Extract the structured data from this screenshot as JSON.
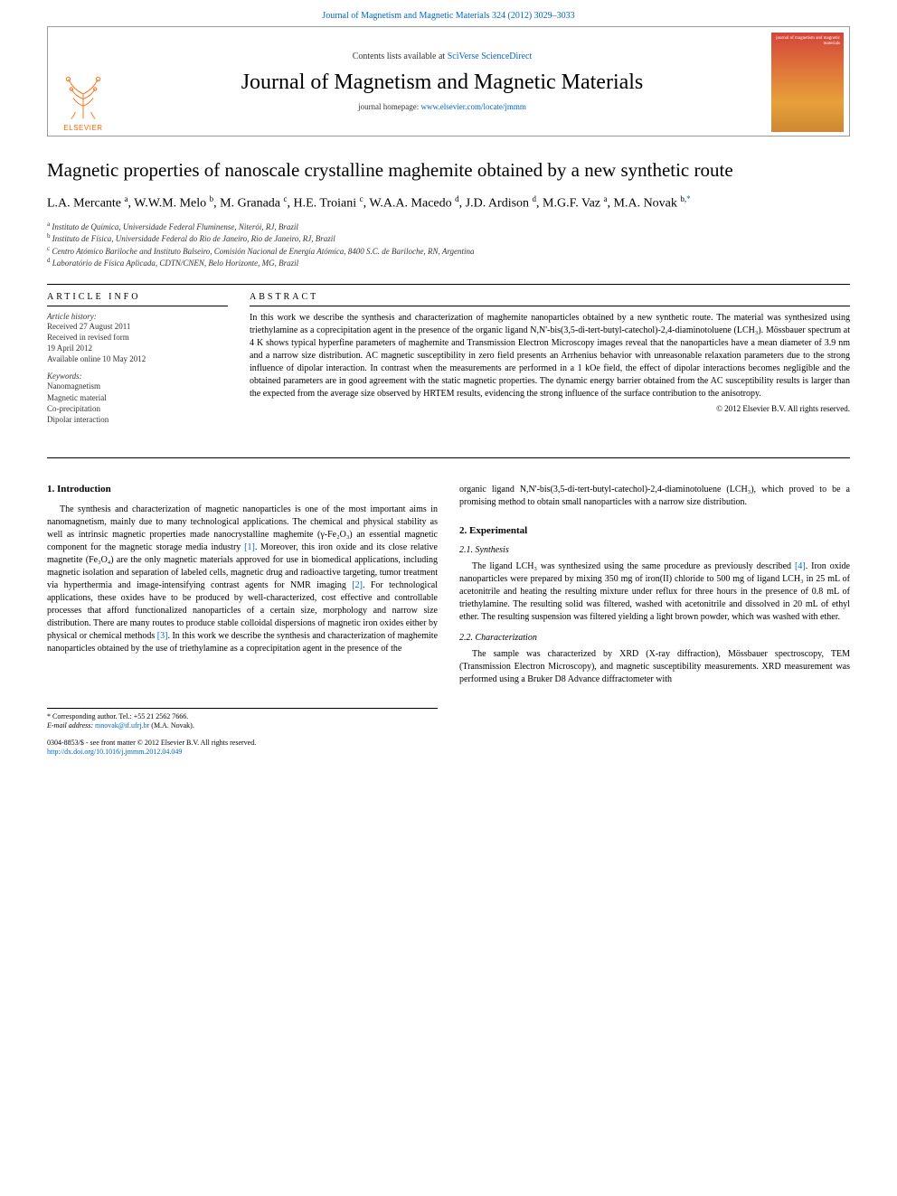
{
  "header": {
    "top_link_prefix": "Journal of Magnetism and Magnetic Materials 324 (2012) 3029–3033",
    "contents_prefix": "Contents lists available at ",
    "contents_link": "SciVerse ScienceDirect",
    "journal_title": "Journal of Magnetism and Magnetic Materials",
    "homepage_prefix": "journal homepage: ",
    "homepage_link": "www.elsevier.com/locate/jmmm",
    "publisher_label": "ELSEVIER",
    "cover_labels": "journal of\nmagnetism\nand\nmagnetic\nmaterials"
  },
  "article": {
    "title": "Magnetic properties of nanoscale crystalline maghemite obtained by a new synthetic route",
    "authors_html": "L.A. Mercante <sup>a</sup>, W.W.M. Melo <sup>b</sup>, M. Granada <sup>c</sup>, H.E. Troiani <sup>c</sup>, W.A.A. Macedo <sup>d</sup>, J.D. Ardison <sup>d</sup>, M.G.F. Vaz <sup>a</sup>, M.A. Novak <sup>b,<span class=\"star\">*</span></sup>",
    "affiliations": [
      "<sup>a</sup> Instituto de Química, Universidade Federal Fluminense, Niterói, RJ, Brazil",
      "<sup>b</sup> Instituto de Física, Universidade Federal do Rio de Janeiro, Rio de Janeiro, RJ, Brazil",
      "<sup>c</sup> Centro Atómico Bariloche and Instituto Balseiro, Comisión Nacional de Energía Atómica, 8400 S.C. de Bariloche, RN, Argentina",
      "<sup>d</sup> Laboratório de Física Aplicada, CDTN/CNEN, Belo Horizonte, MG, Brazil"
    ]
  },
  "info": {
    "heading": "ARTICLE INFO",
    "history_label": "Article history:",
    "history": "Received 27 August 2011\nReceived in revised form\n19 April 2012\nAvailable online 10 May 2012",
    "keywords_label": "Keywords:",
    "keywords": "Nanomagnetism\nMagnetic material\nCo-precipitation\nDipolar interaction"
  },
  "abstract": {
    "heading": "ABSTRACT",
    "text": "In this work we describe the synthesis and characterization of maghemite nanoparticles obtained by a new synthetic route. The material was synthesized using triethylamine as a coprecipitation agent in the presence of the organic ligand N,N'-bis(3,5-di-tert-butyl-catechol)-2,4-diaminotoluene (LCH₃). Mössbauer spectrum at 4 K shows typical hyperfine parameters of maghemite and Transmission Electron Microscopy images reveal that the nanoparticles have a mean diameter of 3.9 nm and a narrow size distribution. AC magnetic susceptibility in zero field presents an Arrhenius behavior with unreasonable relaxation parameters due to the strong influence of dipolar interaction. In contrast when the measurements are performed in a 1 kOe field, the effect of dipolar interactions becomes negligible and the obtained parameters are in good agreement with the static magnetic properties. The dynamic energy barrier obtained from the AC susceptibility results is larger than the expected from the average size observed by HRTEM results, evidencing the strong influence of the surface contribution to the anisotropy.",
    "copyright": "© 2012 Elsevier B.V. All rights reserved."
  },
  "sections": {
    "intro_heading": "1. Introduction",
    "intro_p1": "The synthesis and characterization of magnetic nanoparticles is one of the most important aims in nanomagnetism, mainly due to many technological applications. The chemical and physical stability as well as intrinsic magnetic properties made nanocrystalline maghemite (γ-Fe₂O₃) an essential magnetic component for the magnetic storage media industry [1]. Moreover, this iron oxide and its close relative magnetite (Fe₃O₄) are the only magnetic materials approved for use in biomedical applications, including magnetic isolation and separation of labeled cells, magnetic drug and radioactive targeting, tumor treatment via hyperthermia and image-intensifying contrast agents for NMR imaging [2]. For technological applications, these oxides have to be produced by well-characterized, cost effective and controllable processes that afford functionalized nanoparticles of a certain size, morphology and narrow size distribution. There are many routes to produce stable colloidal dispersions of magnetic iron oxides either by physical or chemical methods [3]. In this work we describe the synthesis and characterization of maghemite nanoparticles obtained by the use of triethylamine as a coprecipitation agent in the presence of the",
    "intro_p2_col2": "organic ligand N,N'-bis(3,5-di-tert-butyl-catechol)-2,4-diaminotoluene (LCH₃), which proved to be a promising method to obtain small nanoparticles with a narrow size distribution.",
    "exp_heading": "2. Experimental",
    "synth_heading": "2.1. Synthesis",
    "synth_p": "The ligand LCH₃ was synthesized using the same procedure as previously described [4]. Iron oxide nanoparticles were prepared by mixing 350 mg of iron(II) chloride to 500 mg of ligand LCH₃ in 25 mL of acetonitrile and heating the resulting mixture under reflux for three hours in the presence of 0.8 mL of triethylamine. The resulting solid was filtered, washed with acetonitrile and dissolved in 20 mL of ethyl ether. The resulting suspension was filtered yielding a light brown powder, which was washed with ether.",
    "char_heading": "2.2. Characterization",
    "char_p": "The sample was characterized by XRD (X-ray diffraction), Mössbauer spectroscopy, TEM (Transmission Electron Microscopy), and magnetic susceptibility measurements. XRD measurement was performed using a Bruker D8 Advance diffractometer with"
  },
  "footnotes": {
    "corr": "* Corresponding author. Tel.: +55 21 2562 7666.",
    "email_label": "E-mail address:",
    "email": "mnovak@if.ufrj.br",
    "email_name": "(M.A. Novak).",
    "issn": "0304-8853/$ - see front matter © 2012 Elsevier B.V. All rights reserved.",
    "doi": "http://dx.doi.org/10.1016/j.jmmm.2012.04.049"
  },
  "refs": {
    "r1": "[1]",
    "r2": "[2]",
    "r3": "[3]",
    "r4": "[4]"
  },
  "colors": {
    "link": "#0066cc",
    "elsevier_orange": "#ff6600",
    "text": "#000000",
    "rule": "#000000"
  }
}
